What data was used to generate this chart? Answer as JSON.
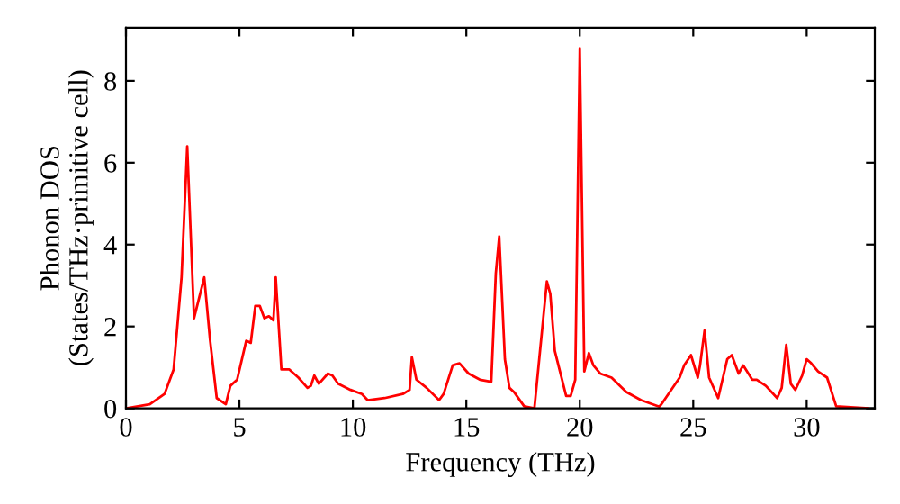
{
  "chart_data": {
    "type": "line",
    "xlabel": "Frequency (THz)",
    "ylabel": "Phonon DOS\n(States/THz·primitive cell)",
    "xlim": [
      0,
      33
    ],
    "ylim": [
      0,
      9.3
    ],
    "xticks": [
      0,
      5,
      10,
      15,
      20,
      25,
      30
    ],
    "yticks": [
      0,
      2,
      4,
      6,
      8
    ],
    "grid": false,
    "marker": "none",
    "line_style": "solid",
    "series": [
      {
        "color": "#ff0000",
        "x": [
          0,
          1.05,
          1.7,
          2.1,
          2.45,
          2.7,
          3.0,
          3.45,
          3.7,
          4.0,
          4.4,
          4.6,
          4.9,
          5.3,
          5.5,
          5.7,
          5.9,
          6.1,
          6.3,
          6.5,
          6.6,
          6.85,
          7.2,
          7.6,
          8.0,
          8.15,
          8.3,
          8.5,
          8.9,
          9.1,
          9.35,
          9.9,
          10.4,
          10.65,
          11.4,
          12.2,
          12.5,
          12.6,
          12.8,
          13.25,
          13.8,
          14.0,
          14.4,
          14.7,
          15.1,
          15.6,
          16.1,
          16.3,
          16.45,
          16.7,
          16.9,
          17.1,
          17.55,
          18.0,
          18.55,
          18.7,
          18.9,
          19.4,
          19.6,
          19.8,
          20.0,
          20.2,
          20.4,
          20.6,
          20.9,
          21.4,
          22.05,
          22.7,
          23.5,
          23.6,
          24.4,
          24.6,
          24.9,
          25.2,
          25.3,
          25.5,
          25.7,
          26.1,
          26.5,
          26.7,
          27.0,
          27.2,
          27.6,
          27.8,
          28.2,
          28.7,
          28.9,
          29.1,
          29.3,
          29.5,
          29.8,
          30.0,
          30.2,
          30.5,
          30.9,
          31.3,
          32.7
        ],
        "values": [
          0,
          0.1,
          0.35,
          0.95,
          3.2,
          6.4,
          2.2,
          3.2,
          1.7,
          0.25,
          0.1,
          0.55,
          0.7,
          1.65,
          1.6,
          2.5,
          2.5,
          2.2,
          2.25,
          2.15,
          3.2,
          0.95,
          0.95,
          0.75,
          0.5,
          0.55,
          0.8,
          0.6,
          0.85,
          0.8,
          0.6,
          0.45,
          0.35,
          0.2,
          0.25,
          0.35,
          0.45,
          1.25,
          0.7,
          0.5,
          0.2,
          0.35,
          1.05,
          1.1,
          0.85,
          0.7,
          0.65,
          3.3,
          4.2,
          1.2,
          0.5,
          0.4,
          0.05,
          0,
          3.1,
          2.8,
          1.4,
          0.3,
          0.3,
          0.7,
          8.8,
          0.9,
          1.35,
          1.05,
          0.85,
          0.75,
          0.4,
          0.2,
          0.04,
          0.1,
          0.75,
          1.05,
          1.3,
          0.75,
          1.05,
          1.9,
          0.75,
          0.25,
          1.2,
          1.3,
          0.85,
          1.05,
          0.7,
          0.7,
          0.55,
          0.25,
          0.5,
          1.55,
          0.6,
          0.45,
          0.8,
          1.2,
          1.1,
          0.9,
          0.75,
          0.05,
          0
        ]
      }
    ]
  }
}
